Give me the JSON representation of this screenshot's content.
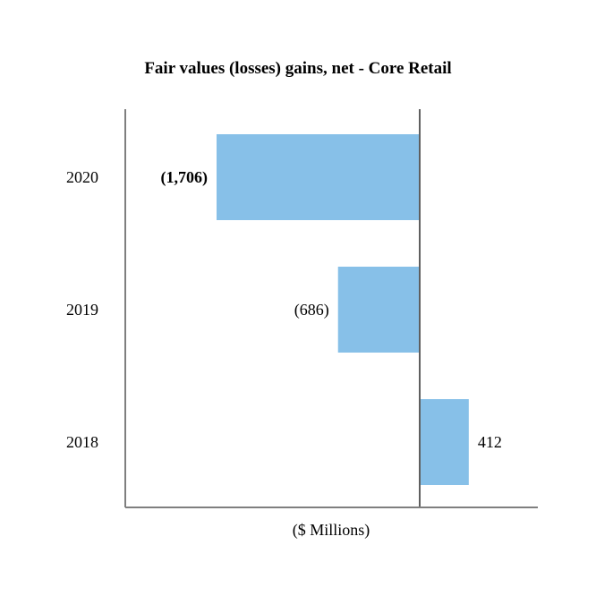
{
  "chart_data": {
    "type": "bar",
    "orientation": "horizontal",
    "title": "Fair values (losses) gains, net - Core Retail",
    "xlabel": "($ Millions)",
    "ylabel": "",
    "categories": [
      "2020",
      "2019",
      "2018"
    ],
    "values": [
      -1706,
      -686,
      412
    ],
    "data_labels": [
      "(1,706)",
      "(686)",
      "412"
    ],
    "bold_labels": [
      true,
      false,
      false
    ],
    "bar_color": "#87c0e8",
    "axis_color": "#7f7f7f",
    "xlim": [
      -2500,
      1000
    ],
    "grid": false,
    "legend": "none"
  }
}
